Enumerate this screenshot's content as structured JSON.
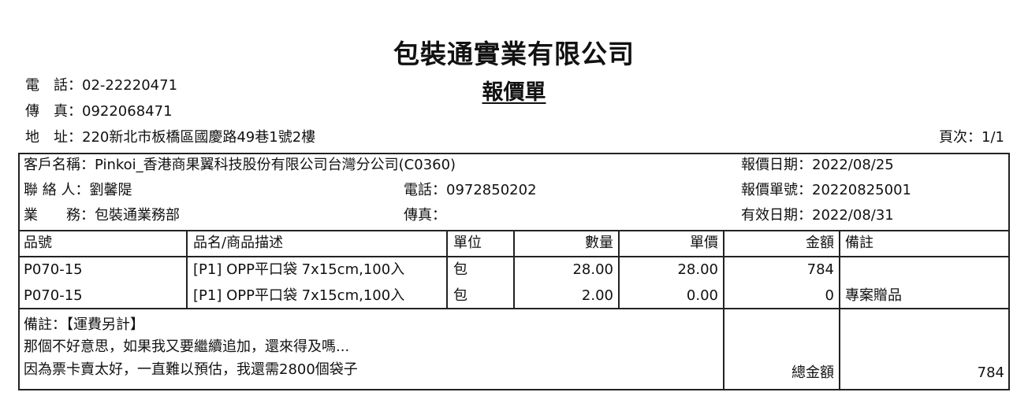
{
  "company": {
    "name": "包裝通實業有限公司",
    "doc_title": "報價單"
  },
  "contact": {
    "phone_label": "電　話：",
    "phone": "02-22220471",
    "fax_label": "傳　真：",
    "fax": "0922068471",
    "address_label": "地　址：",
    "address": "220新北市板橋區國慶路49巷1號2樓"
  },
  "page": {
    "label": "頁次：",
    "value": "1/1"
  },
  "customer": {
    "name_label": "客戶名稱：",
    "name": "Pinkoi_香港商果翼科技股份有限公司台灣分公司(C0360)",
    "contact_label": "聯 絡 人：",
    "contact": "劉馨隄",
    "phone_label": "電話：",
    "phone": "0972850202",
    "sales_label": "業　　務：",
    "sales": "包裝通業務部",
    "fax_label": "傳真：",
    "fax": "",
    "quote_date_label": "報價日期：",
    "quote_date": "2022/08/25",
    "quote_no_label": "報價單號：",
    "quote_no": "20220825001",
    "valid_date_label": "有效日期：",
    "valid_date": "2022/08/31"
  },
  "table": {
    "headers": [
      "品號",
      "品名/商品描述",
      "單位",
      "數量",
      "單價",
      "金額",
      "備註"
    ],
    "rows": [
      [
        "P070-15",
        "[P1] OPP平口袋 7x15cm,100入",
        "包",
        "28.00",
        "28.00",
        "784",
        ""
      ],
      [
        "P070-15",
        "[P1] OPP平口袋 7x15cm,100入",
        "包",
        "2.00",
        "0.00",
        "0",
        "專案贈品"
      ]
    ]
  },
  "notes": {
    "lines": [
      "備註：【運費另計】",
      "那個不好意思，如果我又要繼續追加，還來得及嗎...",
      "因為票卡賣太好，一直難以預估，我還需2800個袋子"
    ]
  },
  "total": {
    "label": "總金額",
    "value": "784"
  }
}
